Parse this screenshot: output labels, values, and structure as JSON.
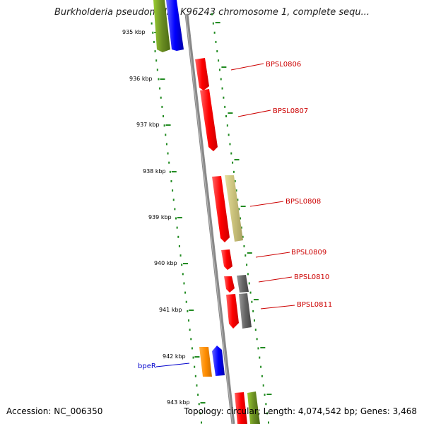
{
  "title": "Burkholderia pseudomallei K96243 chromosome 1, complete sequ...",
  "footer": {
    "accession": "Accession: NC_006350",
    "summary": "Topology: circular; Length: 4,074,542 bp; Genes: 3,468"
  },
  "ticks": [
    "935 kbp",
    "936 kbp",
    "937 kbp",
    "938 kbp",
    "939 kbp",
    "940 kbp",
    "941 kbp",
    "942 kbp",
    "943 kbp"
  ],
  "gene_labels": [
    {
      "text": "BPSL0806",
      "color": "#cc0000"
    },
    {
      "text": "BPSL0807",
      "color": "#cc0000"
    },
    {
      "text": "BPSL0808",
      "color": "#cc0000"
    },
    {
      "text": "BPSL0809",
      "color": "#cc0000"
    },
    {
      "text": "BPSL0810",
      "color": "#cc0000"
    },
    {
      "text": "BPSL0811",
      "color": "#cc0000"
    },
    {
      "text": "bpeR",
      "color": "#0000cc"
    }
  ],
  "colors": {
    "forward_gene": "#ff0000",
    "reverse_gene": "#ff0000",
    "gray_gene": "#666666",
    "khaki_gene": "#c8c07a",
    "green_gene": "#6b8e23",
    "blue_gene": "#0000ff",
    "orange_gene": "#ff8c00",
    "backbone": "#888888",
    "tick_dots": "#228b22"
  }
}
